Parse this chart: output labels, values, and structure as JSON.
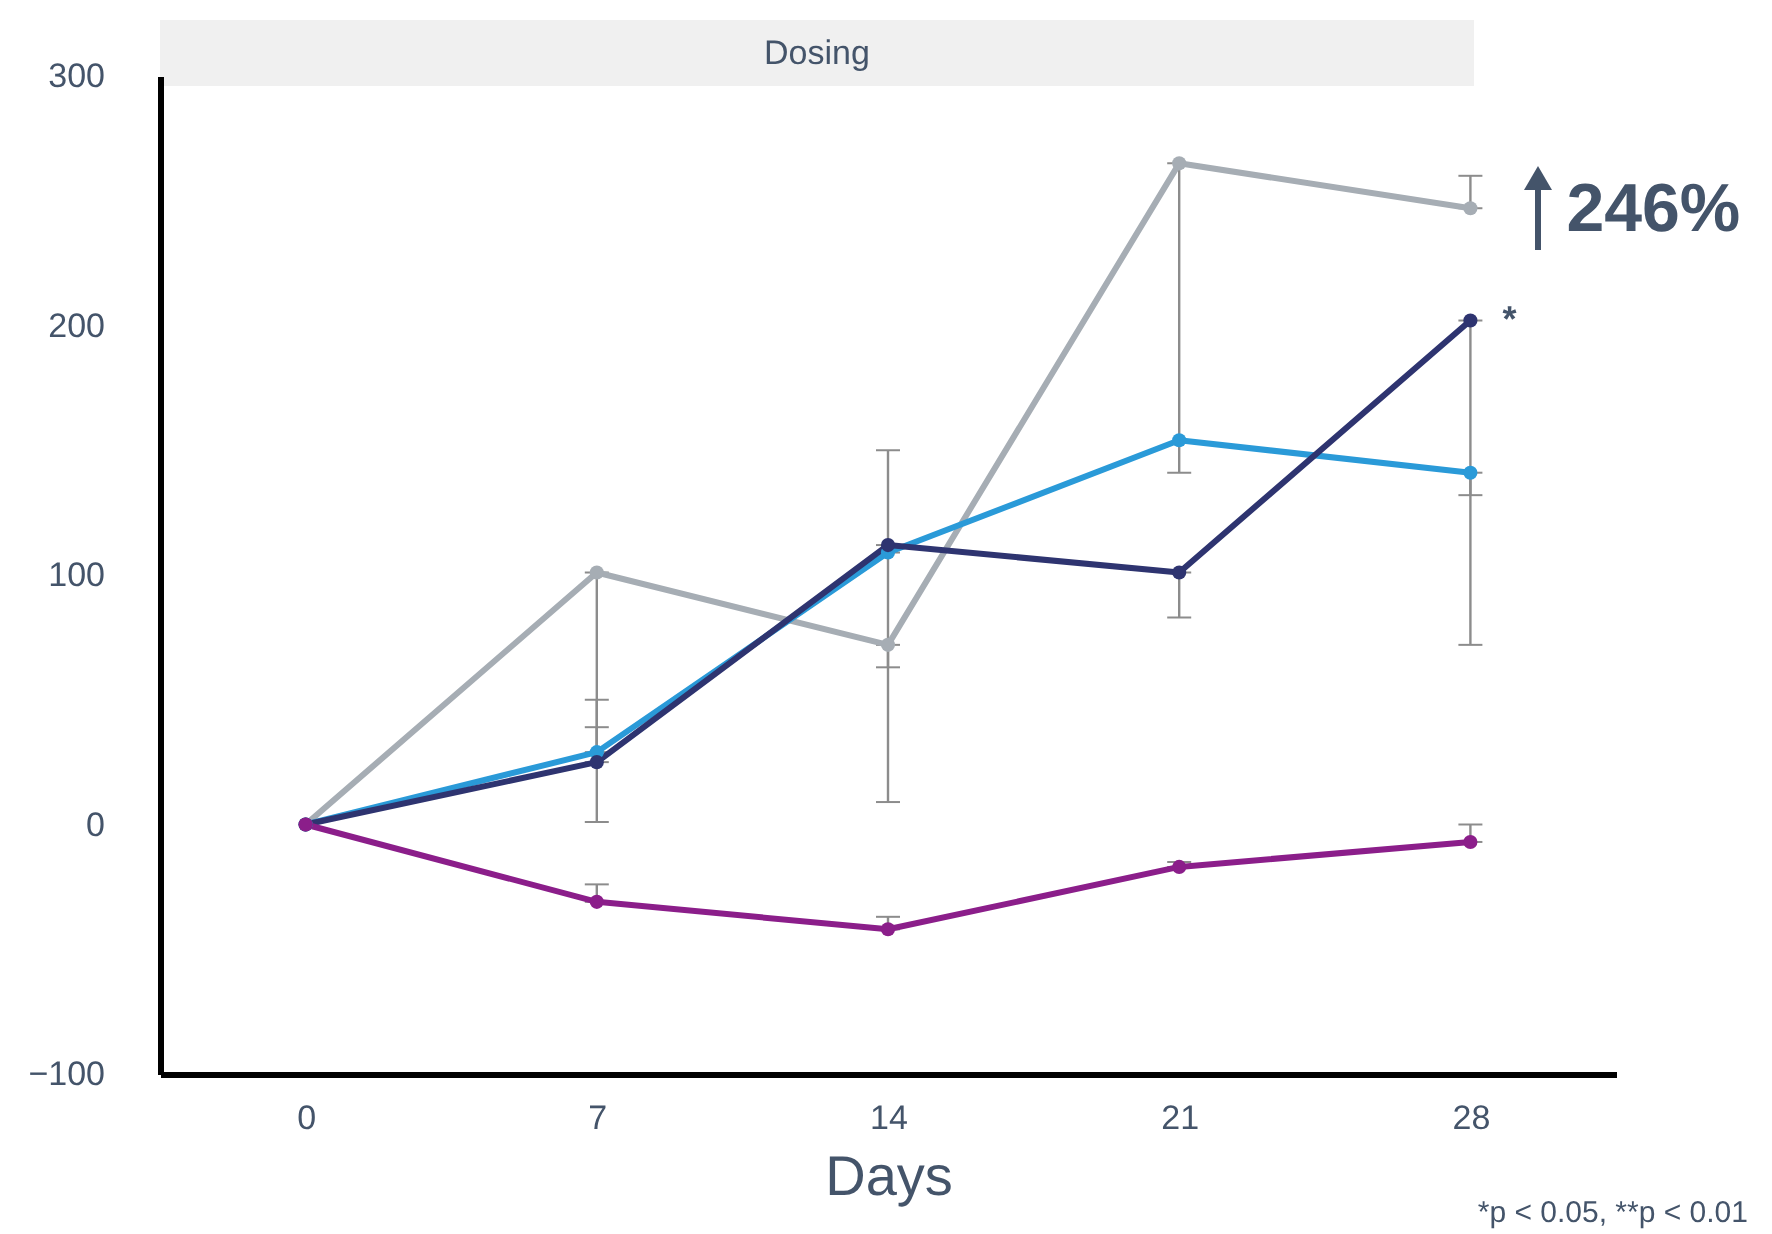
{
  "chart_data": {
    "type": "line",
    "xlabel": "Days",
    "x": [
      0,
      7,
      14,
      21,
      28
    ],
    "series": [
      {
        "color": "#a6adb4",
        "values": [
          0,
          101,
          72,
          265,
          247
        ],
        "errors": [
          null,
          [
            1,
            101
          ],
          [
            9,
            72
          ],
          [
            141,
            265
          ],
          [
            247,
            260
          ]
        ]
      },
      {
        "color": "#2a9ad8",
        "values": [
          0,
          29,
          109,
          154,
          141
        ],
        "errors": [
          null,
          [
            29,
            50
          ],
          [
            63,
            109
          ],
          null,
          [
            132,
            141
          ]
        ]
      },
      {
        "color": "#2e3470",
        "values": [
          0,
          25,
          112,
          101,
          202
        ],
        "errors": [
          null,
          [
            25,
            39
          ],
          [
            112,
            150
          ],
          [
            83,
            101
          ],
          [
            72,
            202
          ]
        ]
      },
      {
        "color": "#8b1e8a",
        "values": [
          0,
          -31,
          -42,
          -17,
          -7
        ],
        "errors": [
          null,
          [
            -31,
            -24
          ],
          [
            -42,
            -37
          ],
          [
            -17,
            -15
          ],
          [
            -7,
            0
          ]
        ]
      }
    ],
    "xlim": [
      -3.5,
      31.5
    ],
    "xticks": [
      0,
      7,
      14,
      21,
      28
    ],
    "ylim": [
      -100,
      300
    ],
    "yticks": [
      -100,
      0,
      100,
      200,
      300
    ],
    "grid": false,
    "legend": false,
    "marker": "circle",
    "line_style": "solid",
    "annotations": [
      {
        "text": "246%",
        "x": 28,
        "y": 246
      },
      {
        "text": "*",
        "x": 28,
        "y": 202
      },
      "Dosing",
      "*p < 0.05, **p < 0.01"
    ]
  }
}
